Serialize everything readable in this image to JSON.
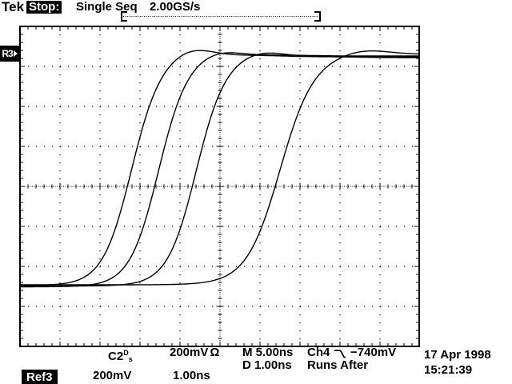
{
  "header": {
    "brand": "Tek",
    "acq_status": "Stop:",
    "acq_mode": "Single Seq",
    "sample_rate": "2.00GS/s"
  },
  "ref_position_marker": {
    "label": "R3"
  },
  "readout_line1": {
    "source": "C2",
    "source_flag_top": "D",
    "source_flag_bottom": "s",
    "vertical_scale": "200mV",
    "impedance": "Ω",
    "main_timebase": "M 5.00ns",
    "trigger_source": "Ch4",
    "trigger_slope_icon": "falling-edge",
    "trigger_level": "−740mV"
  },
  "readout_line2": {
    "delayed_timebase": "D 1.00ns",
    "trigger_mode": "Runs After"
  },
  "datetime": {
    "date": "17 Apr 1998",
    "time": "15:21:39"
  },
  "ref_readout": {
    "label": "Ref3",
    "vertical_scale": "200mV",
    "timebase": "1.00ns"
  },
  "chart_data": {
    "type": "line",
    "title": "Four staggered fast rising edges on oscilloscope graticule",
    "x_units": "ns",
    "y_units": "mV",
    "ns_per_div": 1.0,
    "mV_per_div": 200,
    "divisions_x": 10,
    "divisions_y": 8,
    "x_range_ns": [
      -5,
      5
    ],
    "y_range_mV": [
      -800,
      800
    ],
    "grid": "dotted division lines, center crosshair axes with minor ticks every 0.2 div",
    "legend": "none",
    "series": [
      {
        "name": "edge1",
        "t50_ns": -2.22,
        "rise_k_ns": 0.36,
        "low_mV": -496,
        "high_mV": 648,
        "overshoot_mV": 42,
        "overshoot_t_ns": 1.5,
        "overshoot_sigma_ns": 0.52
      },
      {
        "name": "edge2",
        "t50_ns": -1.54,
        "rise_k_ns": 0.36,
        "low_mV": -502,
        "high_mV": 652,
        "overshoot_mV": 26,
        "overshoot_t_ns": 1.5,
        "overshoot_sigma_ns": 0.52
      },
      {
        "name": "edge3",
        "t50_ns": -0.6,
        "rise_k_ns": 0.36,
        "low_mV": -498,
        "high_mV": 644,
        "overshoot_mV": 30,
        "overshoot_t_ns": 1.6,
        "overshoot_sigma_ns": 0.56
      },
      {
        "name": "edge4",
        "t50_ns": 1.5,
        "rise_k_ns": 0.42,
        "low_mV": -492,
        "high_mV": 656,
        "overshoot_mV": 26,
        "overshoot_t_ns": 2.1,
        "overshoot_sigma_ns": 0.6
      }
    ]
  }
}
